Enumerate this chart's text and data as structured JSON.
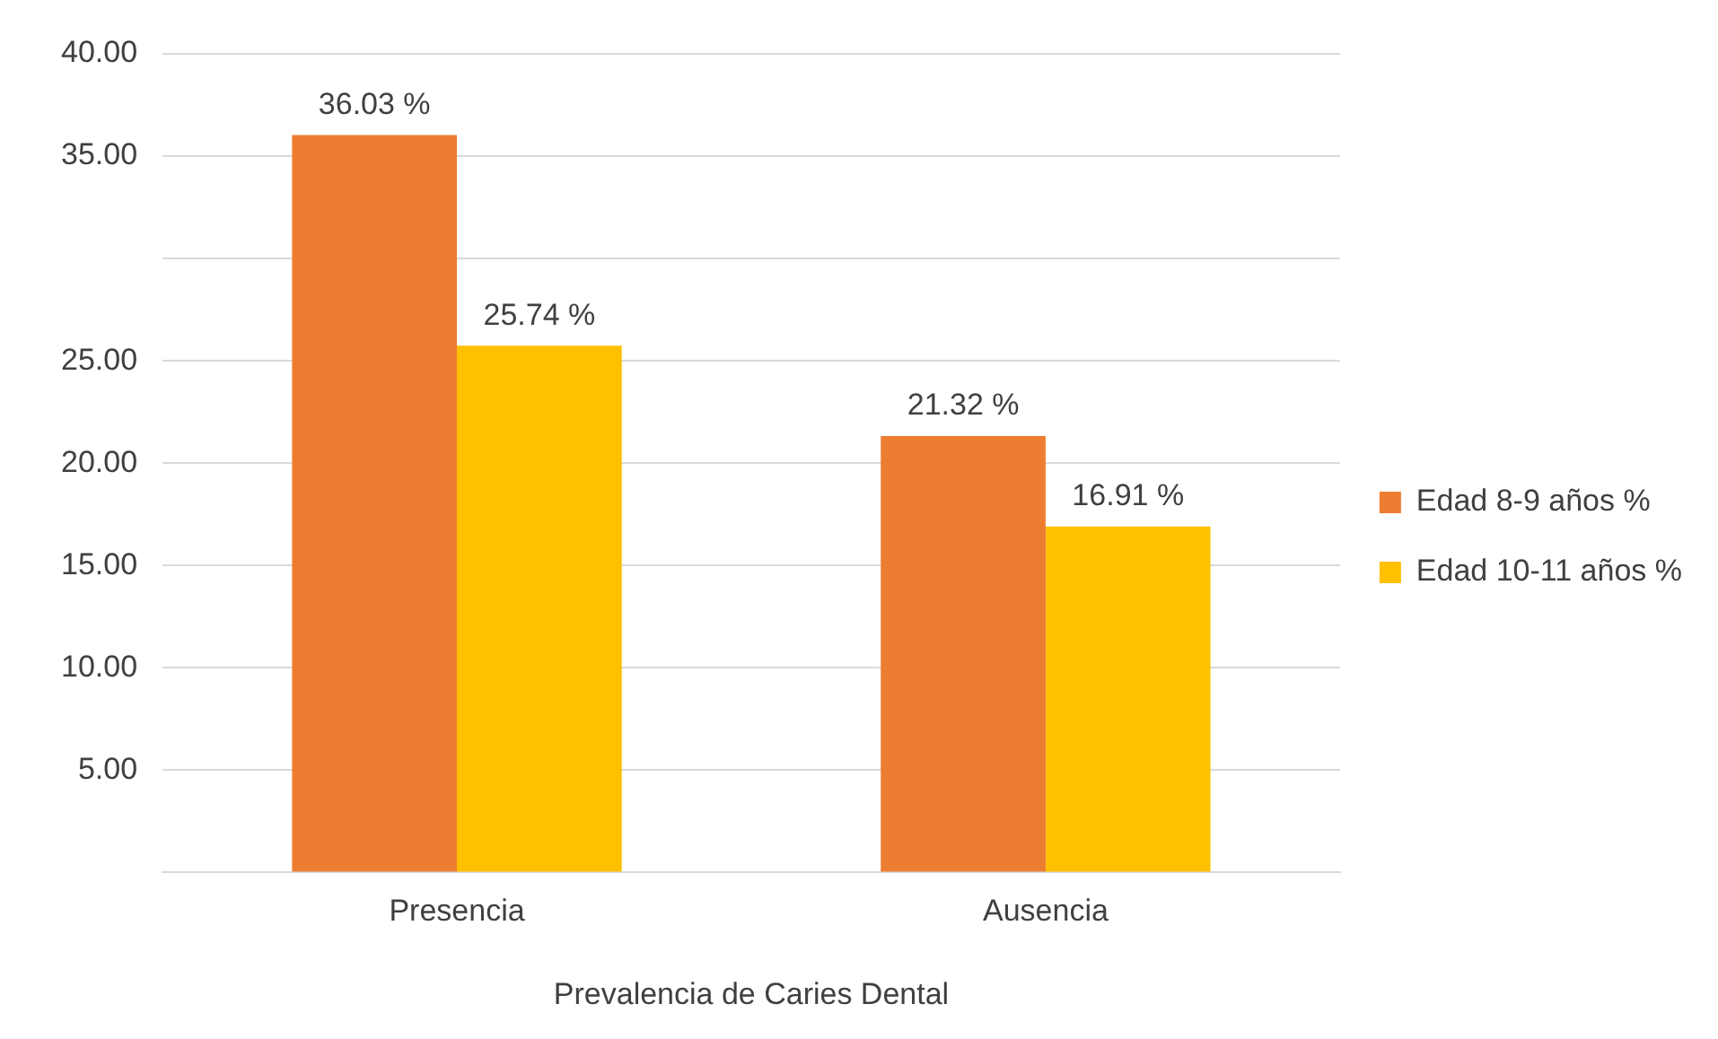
{
  "chart_data": {
    "type": "bar",
    "xlabel": "Prevalencia de Caries Dental",
    "categories": [
      "Presencia",
      "Ausencia"
    ],
    "series": [
      {
        "name": "Edad 8-9 años %",
        "color": "#ed7d31",
        "values": [
          36.03,
          21.32
        ],
        "value_labels": [
          "36.03 %",
          "21.32 %"
        ]
      },
      {
        "name": "Edad 10-11 años %",
        "color": "#ffc000",
        "values": [
          25.74,
          16.91
        ],
        "value_labels": [
          "25.74 %",
          "16.91 %"
        ]
      }
    ],
    "ylim": [
      0,
      40
    ],
    "yticks": [
      {
        "value": 0,
        "label": null
      },
      {
        "value": 5,
        "label": "5.00"
      },
      {
        "value": 10,
        "label": "10.00"
      },
      {
        "value": 15,
        "label": "15.00"
      },
      {
        "value": 20,
        "label": "20.00"
      },
      {
        "value": 25,
        "label": "25.00"
      },
      {
        "value": 30,
        "label": null
      },
      {
        "value": 35,
        "label": "35.00"
      },
      {
        "value": 40,
        "label": "40.00"
      }
    ],
    "grid": "y",
    "legend": "right"
  }
}
